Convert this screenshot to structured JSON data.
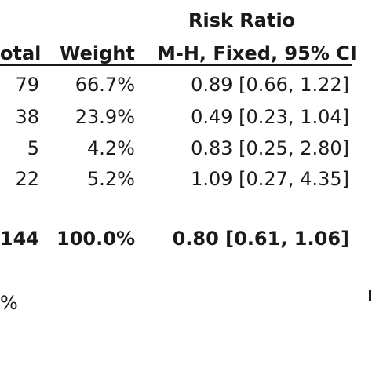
{
  "header": {
    "group_title": "Risk Ratio",
    "col_total": "otal",
    "col_weight": "Weight",
    "col_method": "M-H, Fixed, 95% CI"
  },
  "rows": [
    {
      "total": "79",
      "weight": "66.7%",
      "ratio": "0.89 [0.66, 1.22]"
    },
    {
      "total": "38",
      "weight": "23.9%",
      "ratio": "0.49 [0.23, 1.04]"
    },
    {
      "total": "5",
      "weight": "4.2%",
      "ratio": "0.83 [0.25, 2.80]"
    },
    {
      "total": "22",
      "weight": "5.2%",
      "ratio": "1.09 [0.27, 4.35]"
    }
  ],
  "summary": {
    "total": "144",
    "weight": "100.0%",
    "ratio": "0.80 [0.61, 1.06]"
  },
  "footer": {
    "fragment": "%"
  }
}
